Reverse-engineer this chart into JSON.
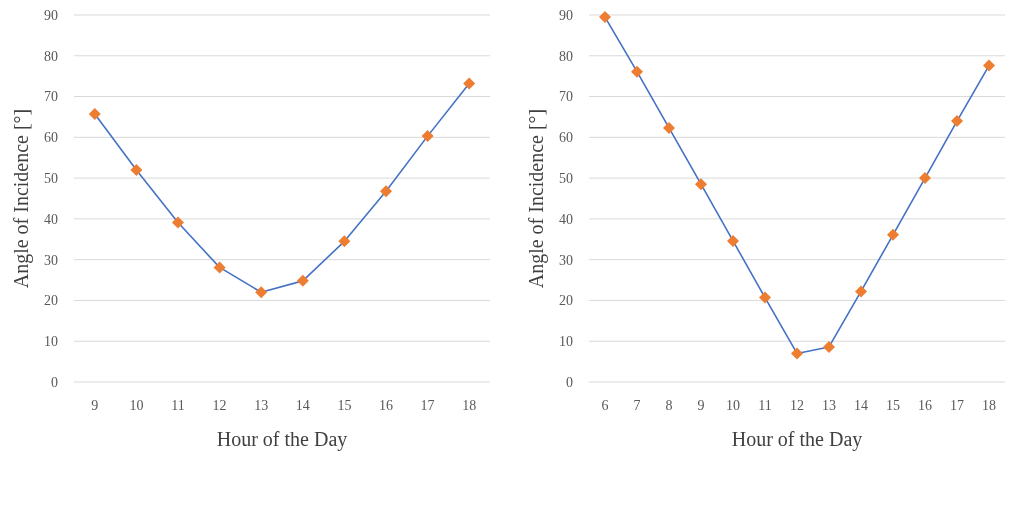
{
  "chart_data": [
    {
      "type": "line",
      "xlabel": "Hour of the Day",
      "ylabel": "Angle of Incidence [°]",
      "categories": [
        "9",
        "10",
        "11",
        "12",
        "13",
        "14",
        "15",
        "16",
        "17",
        "18"
      ],
      "ylim": [
        0,
        90
      ],
      "yticks": [
        0,
        10,
        20,
        30,
        40,
        50,
        60,
        70,
        80,
        90
      ],
      "grid": "y",
      "series": [
        {
          "color": "#4472c4",
          "marker": "none",
          "values": [
            65.7,
            52.0,
            39.1,
            28.1,
            22.0,
            24.8,
            34.5,
            46.8,
            60.3,
            73.2
          ]
        },
        {
          "type": "scatter",
          "color": "#ed7d31",
          "marker": "diamond",
          "values": [
            65.7,
            52.0,
            39.1,
            28.1,
            22.0,
            24.8,
            34.5,
            46.8,
            60.3,
            73.2
          ]
        }
      ]
    },
    {
      "type": "line",
      "xlabel": "Hour of the Day",
      "ylabel": "Angle of Incidence [°]",
      "categories": [
        "6",
        "7",
        "8",
        "9",
        "10",
        "11",
        "12",
        "13",
        "14",
        "15",
        "16",
        "17",
        "18"
      ],
      "ylim": [
        0,
        90
      ],
      "yticks": [
        0,
        10,
        20,
        30,
        40,
        50,
        60,
        70,
        80,
        90
      ],
      "grid": "y",
      "series": [
        {
          "color": "#4472c4",
          "marker": "none",
          "values": [
            89.5,
            76.1,
            62.3,
            48.5,
            34.6,
            20.7,
            7.0,
            8.6,
            22.2,
            36.1,
            50.0,
            64.0,
            77.6
          ]
        },
        {
          "type": "scatter",
          "color": "#ed7d31",
          "marker": "diamond",
          "values": [
            89.5,
            76.1,
            62.3,
            48.5,
            34.6,
            20.7,
            7.0,
            8.6,
            22.2,
            36.1,
            50.0,
            64.0,
            77.6
          ]
        }
      ]
    }
  ]
}
